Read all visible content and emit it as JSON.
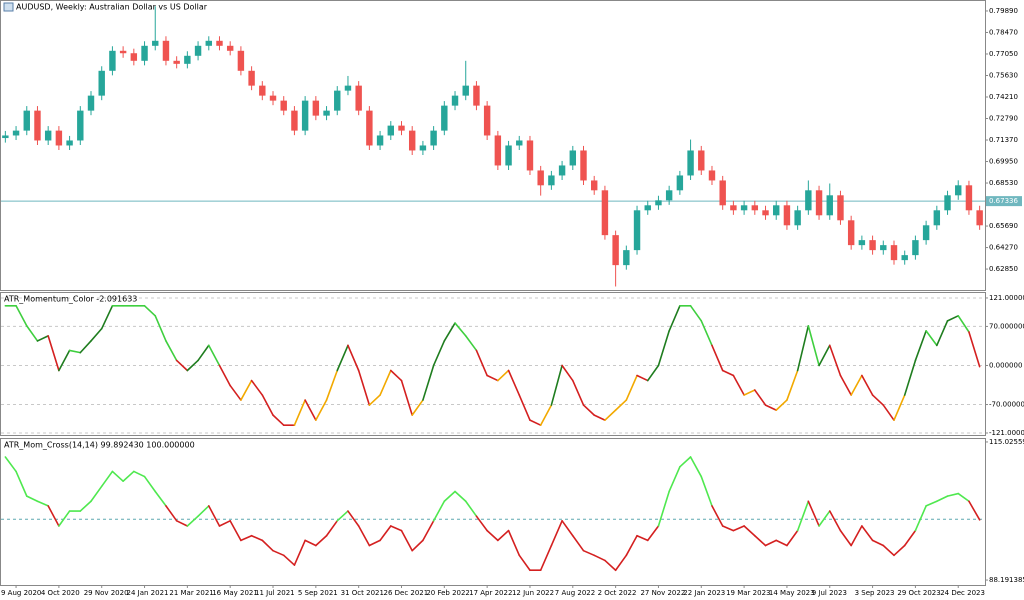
{
  "chart_data": [
    {
      "type": "candlestick",
      "title": "AUDUSD, Weekly:  Australian Dollar vs US Dollar",
      "categories": [
        null,
        "9 Aug 2020",
        null,
        null,
        null,
        "4 Oct 2020",
        null,
        null,
        null,
        "29 Nov 2020",
        null,
        null,
        null,
        "24 Jan 2021",
        null,
        null,
        null,
        "21 Mar 2021",
        null,
        null,
        null,
        "16 May 2021",
        null,
        null,
        null,
        "11 Jul 2021",
        null,
        null,
        null,
        "5 Sep 2021",
        null,
        null,
        null,
        "31 Oct 2021",
        null,
        null,
        null,
        "26 Dec 2021",
        null,
        null,
        null,
        "20 Feb 2022",
        null,
        null,
        null,
        "17 Apr 2022",
        null,
        null,
        null,
        "12 Jun 2022",
        null,
        null,
        null,
        "7 Aug 2022",
        null,
        null,
        null,
        "2 Oct 2022",
        null,
        null,
        null,
        "27 Nov 2022",
        null,
        null,
        null,
        "22 Jan 2023",
        null,
        null,
        null,
        "19 Mar 2023",
        null,
        null,
        null,
        "14 May 2023",
        null,
        null,
        null,
        "9 Jul 2023",
        null,
        null,
        null,
        "3 Sep 2023",
        null,
        null,
        null,
        "29 Oct 2023",
        null,
        null,
        null,
        "24 Dec 2023",
        null,
        null
      ],
      "ohlc": [
        [
          0.715,
          0.7197,
          0.712,
          0.7167
        ],
        [
          0.7167,
          0.7229,
          0.7137,
          0.7199
        ],
        [
          0.7199,
          0.7361,
          0.7169,
          0.7331
        ],
        [
          0.7331,
          0.7361,
          0.7104,
          0.7134
        ],
        [
          0.7134,
          0.7229,
          0.7104,
          0.7199
        ],
        [
          0.7199,
          0.7229,
          0.7071,
          0.7101
        ],
        [
          0.7101,
          0.7164,
          0.7071,
          0.7134
        ],
        [
          0.7134,
          0.7361,
          0.7104,
          0.7331
        ],
        [
          0.7331,
          0.746,
          0.7301,
          0.743
        ],
        [
          0.743,
          0.7624,
          0.74,
          0.7594
        ],
        [
          0.7594,
          0.7756,
          0.7564,
          0.7726
        ],
        [
          0.7726,
          0.7756,
          0.768,
          0.771
        ],
        [
          0.771,
          0.774,
          0.763,
          0.766
        ],
        [
          0.766,
          0.7789,
          0.763,
          0.7759
        ],
        [
          0.7759,
          0.802,
          0.7729,
          0.7792
        ],
        [
          0.7792,
          0.7822,
          0.763,
          0.766
        ],
        [
          0.766,
          0.769,
          0.761,
          0.764
        ],
        [
          0.764,
          0.7723,
          0.761,
          0.7693
        ],
        [
          0.7693,
          0.7789,
          0.7663,
          0.7759
        ],
        [
          0.7759,
          0.7822,
          0.7729,
          0.7792
        ],
        [
          0.7792,
          0.7822,
          0.7729,
          0.7759
        ],
        [
          0.7759,
          0.7789,
          0.7696,
          0.7726
        ],
        [
          0.7726,
          0.7756,
          0.7564,
          0.7594
        ],
        [
          0.7594,
          0.7624,
          0.7466,
          0.7496
        ],
        [
          0.7496,
          0.7526,
          0.74,
          0.743
        ],
        [
          0.743,
          0.746,
          0.7367,
          0.7397
        ],
        [
          0.7397,
          0.7427,
          0.7301,
          0.7331
        ],
        [
          0.7331,
          0.7361,
          0.7169,
          0.7199
        ],
        [
          0.7199,
          0.7427,
          0.7169,
          0.7397
        ],
        [
          0.7397,
          0.7427,
          0.7268,
          0.7298
        ],
        [
          0.7298,
          0.7361,
          0.7268,
          0.7331
        ],
        [
          0.7331,
          0.7493,
          0.7301,
          0.7463
        ],
        [
          0.7463,
          0.756,
          0.7433,
          0.7496
        ],
        [
          0.7496,
          0.7526,
          0.7301,
          0.7331
        ],
        [
          0.7331,
          0.7361,
          0.7071,
          0.7101
        ],
        [
          0.7101,
          0.7197,
          0.7071,
          0.7167
        ],
        [
          0.7167,
          0.7262,
          0.7137,
          0.7232
        ],
        [
          0.7232,
          0.7262,
          0.7169,
          0.7199
        ],
        [
          0.7199,
          0.7229,
          0.7038,
          0.7068
        ],
        [
          0.7068,
          0.7131,
          0.7038,
          0.7101
        ],
        [
          0.7101,
          0.7229,
          0.7071,
          0.7199
        ],
        [
          0.7199,
          0.7394,
          0.7169,
          0.7364
        ],
        [
          0.7364,
          0.746,
          0.7334,
          0.743
        ],
        [
          0.743,
          0.766,
          0.74,
          0.7496
        ],
        [
          0.7496,
          0.7526,
          0.7334,
          0.7364
        ],
        [
          0.7364,
          0.7394,
          0.7137,
          0.7167
        ],
        [
          0.7167,
          0.7197,
          0.6939,
          0.6969
        ],
        [
          0.6969,
          0.7131,
          0.6939,
          0.7101
        ],
        [
          0.7101,
          0.7164,
          0.7071,
          0.7134
        ],
        [
          0.7134,
          0.7164,
          0.6906,
          0.6936
        ],
        [
          0.6936,
          0.6966,
          0.677,
          0.6838
        ],
        [
          0.6838,
          0.6933,
          0.6808,
          0.6903
        ],
        [
          0.6903,
          0.6999,
          0.6873,
          0.6969
        ],
        [
          0.6969,
          0.7098,
          0.6939,
          0.7068
        ],
        [
          0.7068,
          0.7098,
          0.684,
          0.687
        ],
        [
          0.687,
          0.69,
          0.6775,
          0.6805
        ],
        [
          0.6805,
          0.6835,
          0.6479,
          0.6509
        ],
        [
          0.6509,
          0.6539,
          0.617,
          0.6311
        ],
        [
          0.6311,
          0.644,
          0.6281,
          0.641
        ],
        [
          0.641,
          0.6703,
          0.638,
          0.6673
        ],
        [
          0.6673,
          0.6736,
          0.6643,
          0.6706
        ],
        [
          0.6706,
          0.6769,
          0.6676,
          0.6739
        ],
        [
          0.6739,
          0.6835,
          0.6709,
          0.6805
        ],
        [
          0.6805,
          0.6933,
          0.6775,
          0.6903
        ],
        [
          0.6903,
          0.714,
          0.6873,
          0.7068
        ],
        [
          0.7068,
          0.7098,
          0.6906,
          0.6936
        ],
        [
          0.6936,
          0.6966,
          0.684,
          0.687
        ],
        [
          0.687,
          0.69,
          0.6676,
          0.6706
        ],
        [
          0.6706,
          0.6736,
          0.6643,
          0.6673
        ],
        [
          0.6673,
          0.6736,
          0.6643,
          0.6706
        ],
        [
          0.6706,
          0.6736,
          0.6643,
          0.6673
        ],
        [
          0.6673,
          0.6703,
          0.661,
          0.664
        ],
        [
          0.664,
          0.6736,
          0.661,
          0.6706
        ],
        [
          0.6706,
          0.6736,
          0.6544,
          0.6574
        ],
        [
          0.6574,
          0.6703,
          0.6544,
          0.6673
        ],
        [
          0.6673,
          0.687,
          0.6643,
          0.6805
        ],
        [
          0.6805,
          0.6835,
          0.661,
          0.664
        ],
        [
          0.664,
          0.685,
          0.661,
          0.6772
        ],
        [
          0.6772,
          0.6802,
          0.6577,
          0.6607
        ],
        [
          0.6607,
          0.6637,
          0.6413,
          0.6443
        ],
        [
          0.6443,
          0.6506,
          0.6413,
          0.6476
        ],
        [
          0.6476,
          0.6506,
          0.638,
          0.641
        ],
        [
          0.641,
          0.6473,
          0.638,
          0.6443
        ],
        [
          0.6443,
          0.6473,
          0.6314,
          0.6344
        ],
        [
          0.6344,
          0.6407,
          0.6314,
          0.6377
        ],
        [
          0.6377,
          0.6506,
          0.6347,
          0.6476
        ],
        [
          0.6476,
          0.6604,
          0.6446,
          0.6574
        ],
        [
          0.6574,
          0.6703,
          0.6544,
          0.6673
        ],
        [
          0.6673,
          0.6802,
          0.6643,
          0.6772
        ],
        [
          0.6772,
          0.6871,
          0.6742,
          0.6838
        ],
        [
          0.6838,
          0.6868,
          0.6643,
          0.6673
        ],
        [
          0.6673,
          0.6703,
          0.6544,
          0.6574
        ]
      ],
      "up_color": "#26a69a",
      "down_color": "#ef5350",
      "ylim": [
        0.61468,
        0.80548
      ],
      "yticks": [
        {
          "value": 0.7989,
          "label": "0.79890"
        },
        {
          "value": 0.7847,
          "label": "0.78470"
        },
        {
          "value": 0.7705,
          "label": "0.77050"
        },
        {
          "value": 0.7563,
          "label": "0.75630"
        },
        {
          "value": 0.7421,
          "label": "0.74210"
        },
        {
          "value": 0.7279,
          "label": "0.72790"
        },
        {
          "value": 0.7137,
          "label": "0.71370"
        },
        {
          "value": 0.6995,
          "label": "0.69950"
        },
        {
          "value": 0.6853,
          "label": "0.68530"
        },
        {
          "value": 0.6569,
          "label": "0.65690"
        },
        {
          "value": 0.6427,
          "label": "0.64270"
        },
        {
          "value": 0.6285,
          "label": "0.62850"
        }
      ],
      "last_price": {
        "value": 0.67336,
        "label": "0.67336"
      },
      "last_price_color": "#6fb7bf",
      "grid": false
    },
    {
      "type": "line",
      "title": "ATR_Momentum_Color -2.091633",
      "values": [
        107,
        107,
        71,
        44,
        53,
        -9,
        27,
        23,
        44,
        66,
        107,
        107,
        107,
        107,
        89,
        44,
        9,
        -9,
        9,
        36,
        0,
        -36,
        -62,
        -27,
        -53,
        -89,
        -107,
        -107,
        -62,
        -98,
        -62,
        -9,
        36,
        -9,
        -71,
        -53,
        -9,
        -27,
        -89,
        -62,
        0,
        44,
        76,
        53,
        27,
        -18,
        -27,
        -9,
        -53,
        -98,
        -107,
        -71,
        0,
        -27,
        -71,
        -89,
        -98,
        -80,
        -62,
        -18,
        -27,
        0,
        62,
        107,
        107,
        80,
        36,
        -9,
        -18,
        -53,
        -44,
        -71,
        -80,
        -62,
        -9,
        71,
        0,
        36,
        -18,
        -53,
        -18,
        -53,
        -71,
        -98,
        -53,
        9,
        62,
        36,
        80,
        89,
        60,
        -2.091633
      ],
      "color_rising_above": "#1f7d1f",
      "color_falling_above": "#3fcf3f",
      "color_rising_below": "#f2a900",
      "color_falling_below": "#d42020",
      "ylim": [
        -124.6,
        129.9
      ],
      "yticks": [
        {
          "value": 121,
          "label": "121.000000"
        },
        {
          "value": 70,
          "label": "70.000000"
        },
        {
          "value": 0,
          "label": "0.000000"
        },
        {
          "value": -70,
          "label": "-70.000000"
        },
        {
          "value": -121,
          "label": "-121.000000"
        }
      ],
      "grid": true
    },
    {
      "type": "line",
      "title": "ATR_Mom_Cross(14,14) 99.892430 100.000000",
      "values": [
        112.1,
        109.3,
        104.5,
        103.5,
        102.6,
        98.7,
        101.6,
        101.6,
        103.5,
        106.4,
        109.3,
        107.4,
        109.3,
        108.3,
        105.4,
        102.6,
        99.7,
        98.7,
        100.6,
        102.6,
        98.7,
        99.7,
        95.9,
        96.8,
        95.9,
        93.9,
        93.0,
        91.1,
        95.9,
        94.9,
        96.8,
        99.7,
        101.6,
        98.7,
        94.9,
        95.9,
        98.7,
        97.8,
        93.9,
        95.9,
        99.7,
        103.5,
        105.4,
        103.5,
        100.6,
        97.8,
        95.9,
        97.8,
        93.0,
        90.1,
        90.1,
        94.9,
        99.7,
        96.8,
        93.9,
        93.0,
        92.0,
        90.1,
        93.0,
        96.8,
        95.9,
        98.7,
        105.4,
        110.2,
        112.1,
        108.3,
        102.6,
        98.7,
        97.8,
        98.7,
        96.8,
        94.9,
        95.9,
        94.9,
        97.8,
        103.5,
        98.7,
        101.6,
        97.8,
        94.9,
        98.7,
        95.9,
        94.9,
        93.0,
        94.9,
        97.8,
        102.6,
        103.5,
        104.5,
        105.0,
        103.5,
        99.89243
      ],
      "level": 100,
      "color_above": "#4fe84f",
      "color_below": "#d42020",
      "ylim": [
        87.23,
        115.6
      ],
      "yticks": [
        115.025592,
        88.191385
      ],
      "grid": false
    }
  ]
}
